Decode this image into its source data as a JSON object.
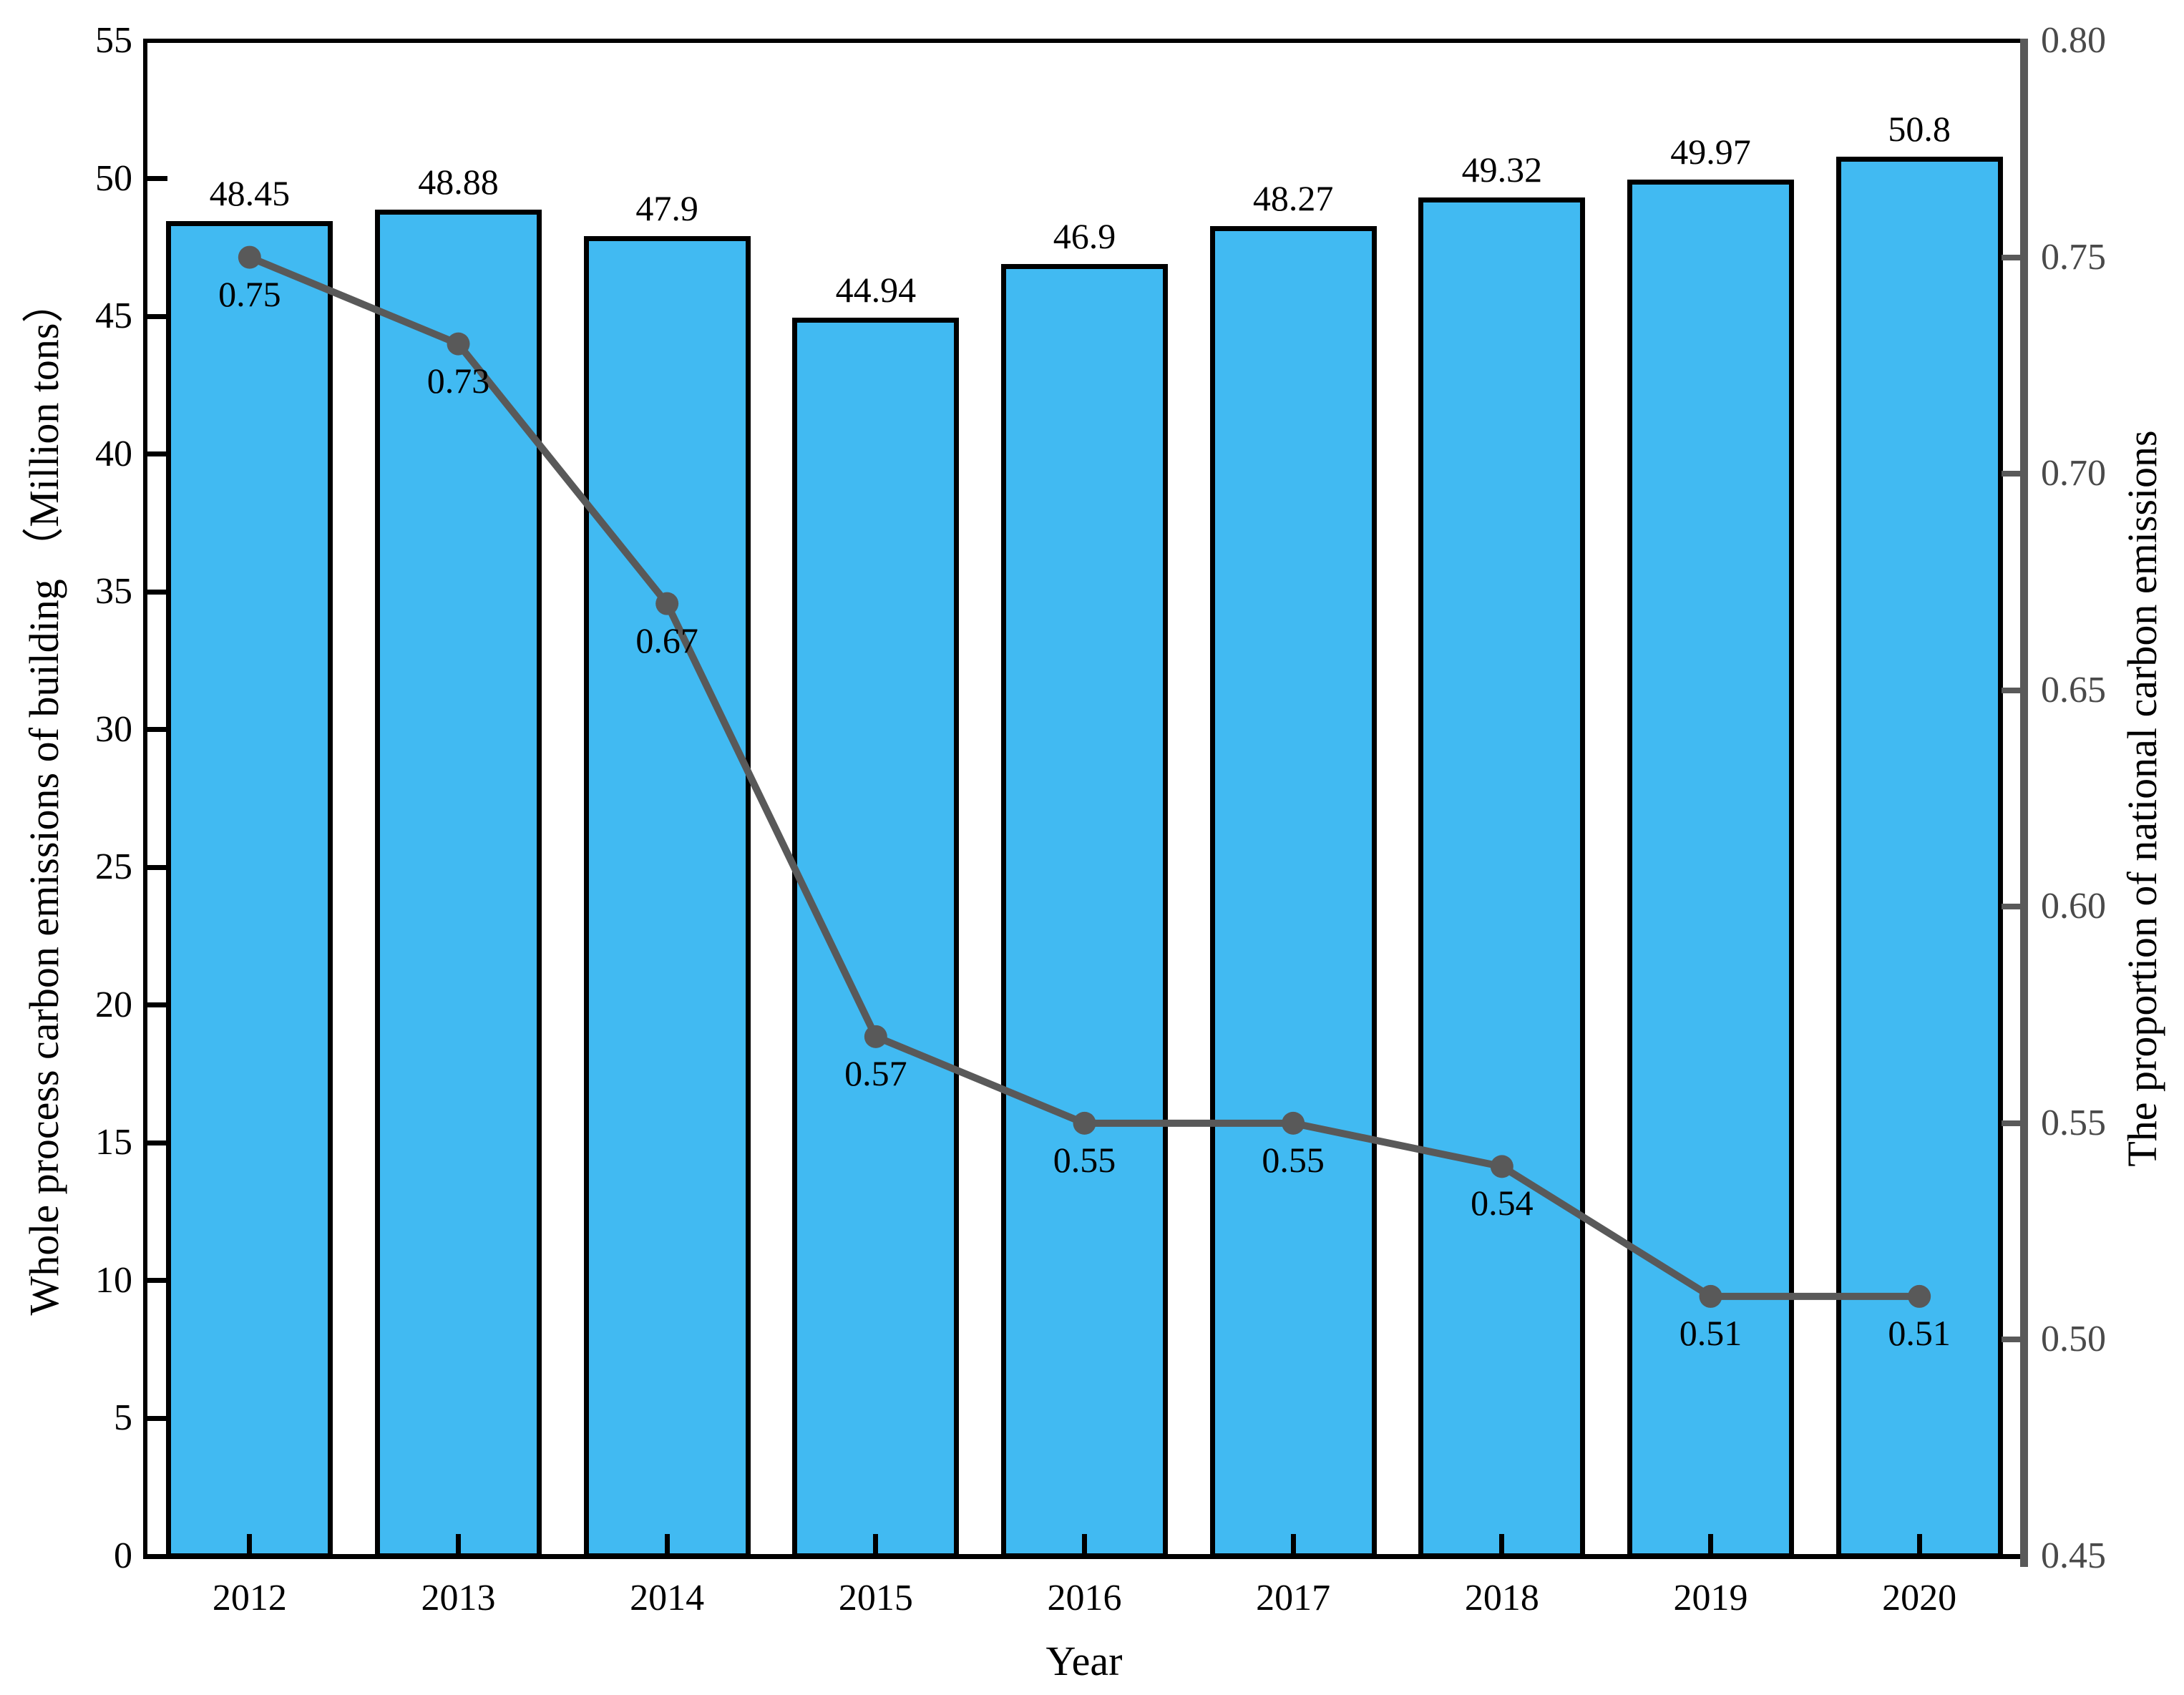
{
  "chart_data": {
    "type": "combo",
    "title": "",
    "grid": false,
    "legend": null,
    "x_categories": [
      "2012",
      "2013",
      "2014",
      "2015",
      "2016",
      "2017",
      "2018",
      "2019",
      "2020"
    ],
    "series": [
      {
        "name": "Whole process carbon emissions of building",
        "type": "bar",
        "y_axis": "left",
        "values": [
          48.45,
          48.88,
          47.9,
          44.94,
          46.9,
          48.27,
          49.32,
          49.97,
          50.8
        ],
        "labels": [
          "48.45",
          "48.88",
          "47.9",
          "44.94",
          "46.9",
          "48.27",
          "49.32",
          "49.97",
          "50.8"
        ],
        "fill_color": "#41baf2",
        "edge_color": "#000000"
      },
      {
        "name": "The proportion of national carbon emissions",
        "type": "line",
        "y_axis": "right",
        "values": [
          0.75,
          0.73,
          0.67,
          0.57,
          0.55,
          0.55,
          0.54,
          0.51,
          0.51
        ],
        "labels": [
          "0.75",
          "0.73",
          "0.67",
          "0.57",
          "0.55",
          "0.55",
          "0.54",
          "0.51",
          "0.51"
        ],
        "line_color": "#595959",
        "marker": "circle"
      }
    ],
    "left_axis": {
      "label": "Whole process carbon emissions of building （Million tons）",
      "min": 0,
      "max": 55,
      "tick_step": 5,
      "tick_labels": [
        "0",
        "5",
        "10",
        "15",
        "20",
        "25",
        "30",
        "35",
        "40",
        "45",
        "50",
        "55"
      ],
      "axis_color": "#000000",
      "tick_label_color": "#000000"
    },
    "right_axis": {
      "label": "The proportion of national carbon emissions",
      "min": 0.45,
      "max": 0.8,
      "tick_step": 0.05,
      "tick_labels": [
        "0.45",
        "0.50",
        "0.55",
        "0.60",
        "0.65",
        "0.70",
        "0.75",
        "0.80"
      ],
      "axis_color": "#595959",
      "tick_label_color": "#4a4a4a"
    },
    "x_axis": {
      "label": "Year",
      "tick_label_color": "#000000"
    }
  }
}
